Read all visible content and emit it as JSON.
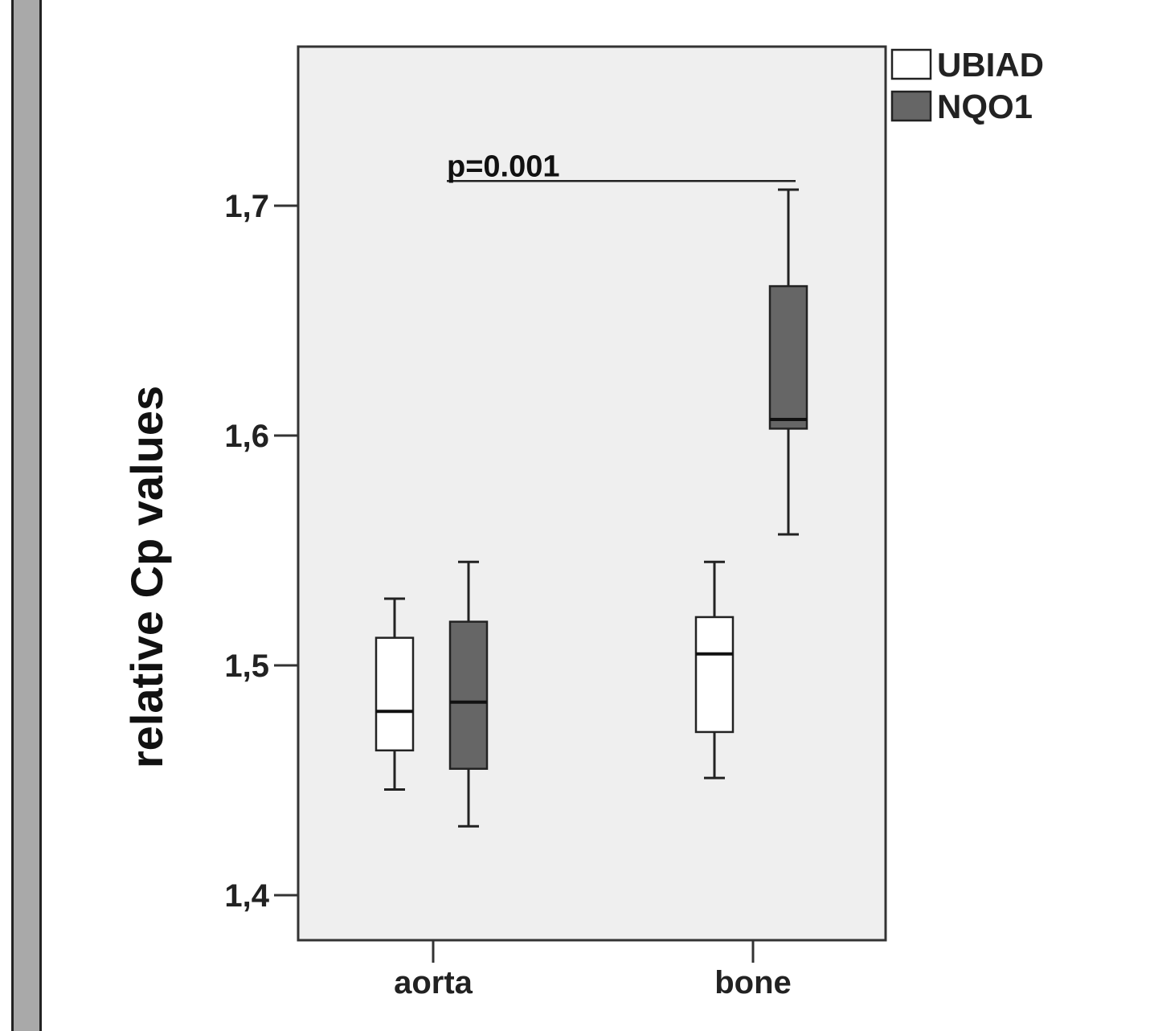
{
  "chart_data": {
    "type": "boxplot",
    "ylabel": "relative Cp values",
    "ylim": [
      1.38,
      1.77
    ],
    "yticks": [
      {
        "value": 1.4,
        "label": "1,4"
      },
      {
        "value": 1.5,
        "label": "1,5"
      },
      {
        "value": 1.6,
        "label": "1,6"
      },
      {
        "value": 1.7,
        "label": "1,7"
      }
    ],
    "categories": [
      "aorta",
      "bone"
    ],
    "grid": false,
    "legend_position": "top-right",
    "series": [
      {
        "name": "UBIAD",
        "color": "#ffffff",
        "boxes": [
          {
            "category": "aorta",
            "whisker_low": 1.446,
            "q1": 1.463,
            "median": 1.48,
            "q3": 1.512,
            "whisker_high": 1.529
          },
          {
            "category": "bone",
            "whisker_low": 1.451,
            "q1": 1.471,
            "median": 1.505,
            "q3": 1.521,
            "whisker_high": 1.545
          }
        ]
      },
      {
        "name": "NQO1",
        "color": "#666666",
        "boxes": [
          {
            "category": "aorta",
            "whisker_low": 1.43,
            "q1": 1.455,
            "median": 1.484,
            "q3": 1.519,
            "whisker_high": 1.545
          },
          {
            "category": "bone",
            "whisker_low": 1.557,
            "q1": 1.603,
            "median": 1.607,
            "q3": 1.665,
            "whisker_high": 1.707
          }
        ]
      }
    ],
    "annotations": [
      {
        "text": "p=0.001",
        "from_category": "aorta",
        "to_category": "bone",
        "y": 1.709
      }
    ]
  }
}
